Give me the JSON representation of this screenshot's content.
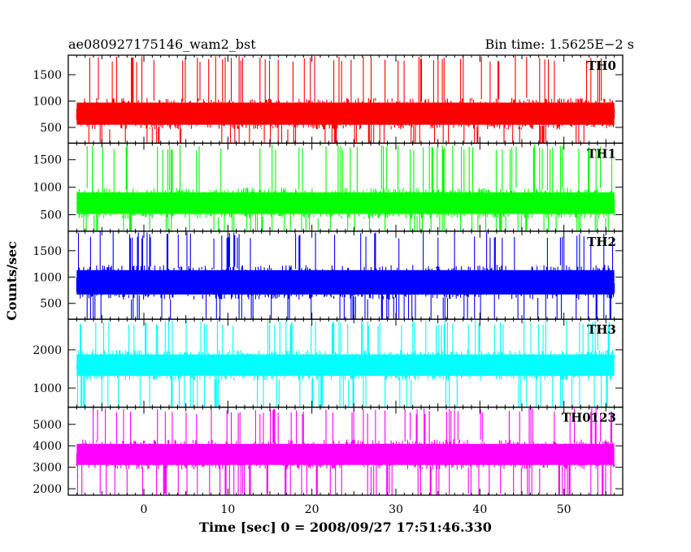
{
  "header": {
    "title": "ae080927175146_wam2_bst",
    "bin_time": "Bin time: 1.5625E−2 s"
  },
  "chart_data": {
    "type": "line",
    "xlabel": "Time [sec] 0 = 2008/09/27 17:51:46.330",
    "ylabel": "Counts/sec",
    "xlim": [
      -9,
      57
    ],
    "x_ticks": [
      0,
      10,
      20,
      30,
      40,
      50
    ],
    "x_data_range": [
      -8,
      56
    ],
    "bin_time_s": 0.015625,
    "panels": [
      {
        "name": "TH0",
        "color": "#ff0000",
        "ylim": [
          200,
          1870
        ],
        "y_ticks": [
          500,
          1000,
          1500
        ],
        "baseline": 760,
        "noise": 300,
        "min": 80,
        "max": 1860
      },
      {
        "name": "TH1",
        "color": "#00ff00",
        "ylim": [
          200,
          1800
        ],
        "y_ticks": [
          500,
          1000,
          1500
        ],
        "baseline": 710,
        "noise": 280,
        "min": 80,
        "max": 1780
      },
      {
        "name": "TH2",
        "color": "#0000ff",
        "ylim": [
          200,
          1870
        ],
        "y_ticks": [
          500,
          1000,
          1500
        ],
        "baseline": 900,
        "noise": 330,
        "min": 80,
        "max": 1860
      },
      {
        "name": "TH3",
        "color": "#00ffff",
        "ylim": [
          500,
          2800
        ],
        "y_ticks": [
          1000,
          2000
        ],
        "baseline": 1600,
        "noise": 400,
        "min": 300,
        "max": 2780
      },
      {
        "name": "TH0123",
        "color": "#ff00ff",
        "ylim": [
          1700,
          5800
        ],
        "y_ticks": [
          2000,
          3000,
          4000,
          5000
        ],
        "baseline": 3600,
        "noise": 700,
        "min": 1500,
        "max": 5750
      }
    ]
  }
}
